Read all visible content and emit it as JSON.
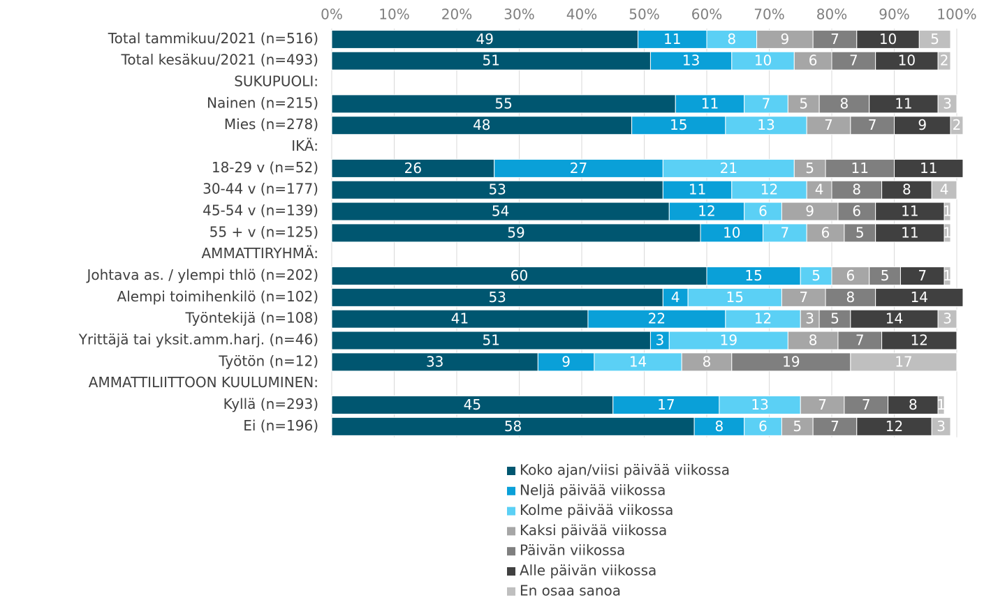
{
  "chart_data": {
    "type": "stacked_bar_horizontal",
    "categories": [
      "Total tammikuu/2021 (n=516)",
      "Total kesäkuu/2021 (n=493)",
      "SUKUPUOLI:",
      "Nainen (n=215)",
      "Mies (n=278)",
      "IKÄ:",
      "18-29 v (n=52)",
      "30-44 v (n=177)",
      "45-54 v (n=139)",
      "55 + v (n=125)",
      "AMMATTIRYHMÄ:",
      "Johtava as. / ylempi thlö (n=202)",
      "Alempi toimihenkilö (n=102)",
      "Työntekijä (n=108)",
      "Yrittäjä tai yksit.amm.harj. (n=46)",
      "Työtön (n=12)",
      "AMMATTILIITTOON KUULUMINEN:",
      "Kyllä (n=293)",
      "Ei (n=196)"
    ],
    "series": [
      {
        "name": "Koko ajan/viisi päivää viikossa",
        "color": "#005670",
        "values": [
          49,
          51,
          null,
          55,
          48,
          null,
          26,
          53,
          54,
          59,
          null,
          60,
          53,
          41,
          51,
          33,
          null,
          45,
          58
        ]
      },
      {
        "name": "Neljä päivää viikossa",
        "color": "#0aa0d8",
        "values": [
          11,
          13,
          null,
          11,
          15,
          null,
          27,
          11,
          12,
          10,
          null,
          15,
          4,
          22,
          3,
          9,
          null,
          17,
          8
        ]
      },
      {
        "name": "Kolme päivää viikossa",
        "color": "#5bd0f5",
        "values": [
          8,
          10,
          null,
          7,
          13,
          null,
          21,
          12,
          6,
          7,
          null,
          5,
          15,
          12,
          19,
          14,
          null,
          13,
          6
        ]
      },
      {
        "name": "Kaksi päivää viikossa",
        "color": "#a6a6a6",
        "values": [
          9,
          6,
          null,
          5,
          7,
          null,
          5,
          4,
          9,
          6,
          null,
          6,
          7,
          3,
          8,
          8,
          null,
          7,
          5
        ]
      },
      {
        "name": "Päivän viikossa",
        "color": "#7f7f7f",
        "values": [
          7,
          7,
          null,
          8,
          7,
          null,
          11,
          8,
          6,
          5,
          null,
          5,
          8,
          5,
          7,
          19,
          null,
          7,
          7
        ]
      },
      {
        "name": "Alle päivän viikossa",
        "color": "#404040",
        "values": [
          10,
          10,
          null,
          11,
          9,
          null,
          11,
          8,
          11,
          11,
          null,
          7,
          14,
          14,
          12,
          null,
          null,
          8,
          12
        ]
      },
      {
        "name": "En osaa sanoa",
        "color": "#bfbfbf",
        "values": [
          5,
          2,
          null,
          3,
          2,
          null,
          null,
          4,
          1,
          1,
          null,
          1,
          null,
          3,
          null,
          17,
          null,
          1,
          3
        ]
      }
    ],
    "xlim": [
      0,
      100
    ],
    "xticks": [
      {
        "value": 0,
        "label": "0%"
      },
      {
        "value": 10,
        "label": "10%"
      },
      {
        "value": 20,
        "label": "20%"
      },
      {
        "value": 30,
        "label": "30%"
      },
      {
        "value": 40,
        "label": "40%"
      },
      {
        "value": 50,
        "label": "50%"
      },
      {
        "value": 60,
        "label": "60%"
      },
      {
        "value": 70,
        "label": "70%"
      },
      {
        "value": 80,
        "label": "80%"
      },
      {
        "value": 90,
        "label": "90%"
      },
      {
        "value": 100,
        "label": "100%"
      }
    ],
    "grid": true,
    "legend": "bottom"
  }
}
